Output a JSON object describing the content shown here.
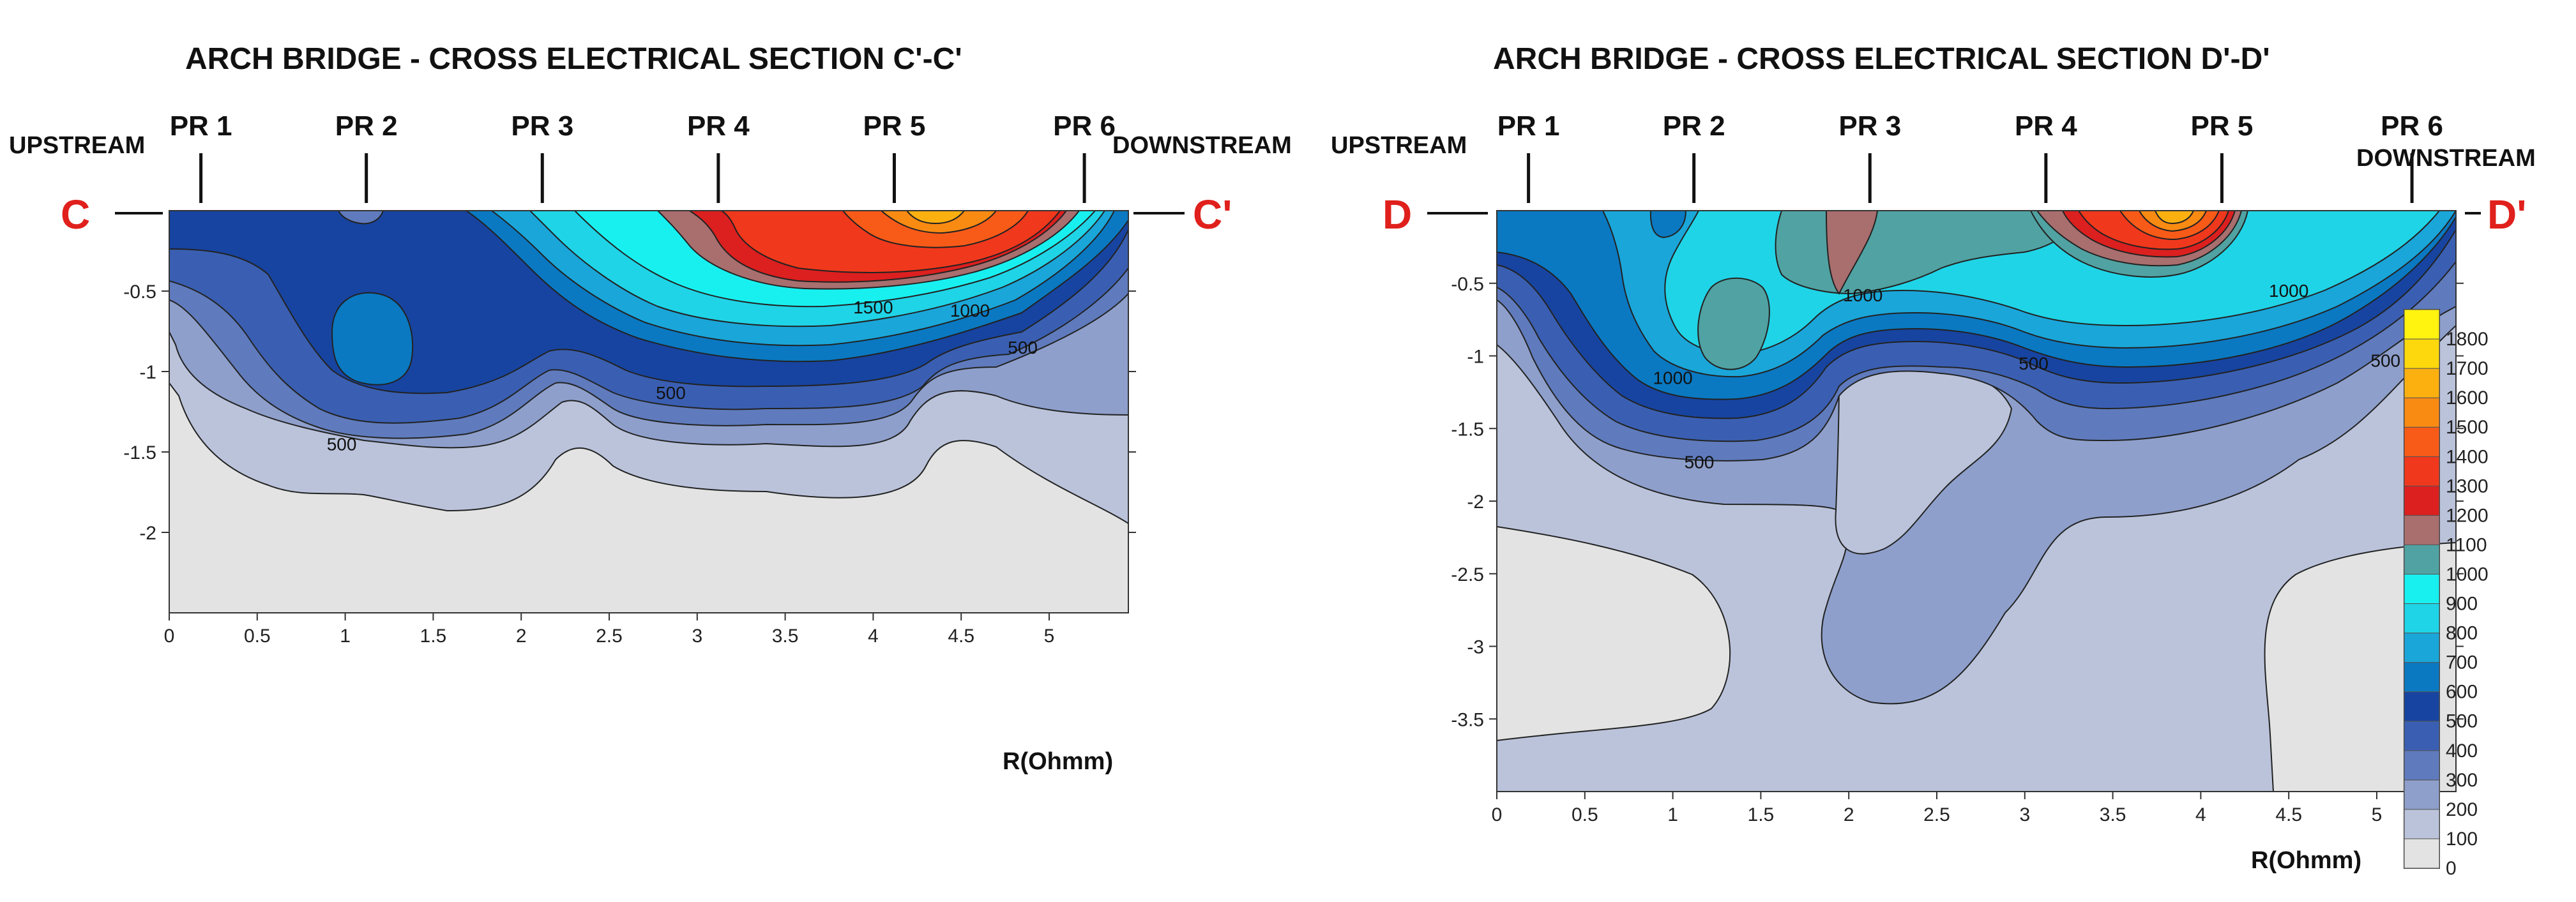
{
  "colors": {
    "scale": [
      "#e3e3e3",
      "#bac3da",
      "#8e9fcb",
      "#5f7bbd",
      "#3a5fb2",
      "#1744a0",
      "#0a79c2",
      "#1aa6d9",
      "#1fd4e6",
      "#18f0f0",
      "#51a2a2",
      "#a96e6e",
      "#dc1f1f",
      "#f0381c",
      "#f85a18",
      "#f98a12",
      "#fcb010",
      "#fdd80c",
      "#fff310"
    ],
    "section_label": "#e0201c"
  },
  "chart_data": [
    {
      "type": "heatmap",
      "title": "ARCH BRIDGE - CROSS ELECTRICAL SECTION C'-C'",
      "xlabel": "",
      "ylabel": "",
      "unit_label": "R(Ohmm)",
      "xlim": [
        0,
        5.45
      ],
      "ylim": [
        -2.5,
        0
      ],
      "x_ticks": [
        "0",
        "0.5",
        "1",
        "1.5",
        "2",
        "2.5",
        "3",
        "3.5",
        "4",
        "4.5",
        "5"
      ],
      "y_ticks": [
        "-0.5",
        "-1",
        "-1.5",
        "-2"
      ],
      "left_side_label": "UPSTREAM",
      "right_side_label": "DOWNSTREAM",
      "section_start": "C",
      "section_end": "C'",
      "profiles": [
        {
          "label": "PR 1",
          "x": 0.18
        },
        {
          "label": "PR 2",
          "x": 1.12
        },
        {
          "label": "PR 3",
          "x": 2.12
        },
        {
          "label": "PR 4",
          "x": 3.12
        },
        {
          "label": "PR 5",
          "x": 4.12
        },
        {
          "label": "PR 6",
          "x": 5.2
        }
      ],
      "contour_labels": [
        {
          "text": "500",
          "x": 0.98,
          "y": -1.45
        },
        {
          "text": "500",
          "x": 2.85,
          "y": -1.13
        },
        {
          "text": "500",
          "x": 4.85,
          "y": -0.85
        },
        {
          "text": "1000",
          "x": 4.55,
          "y": -0.62
        },
        {
          "text": "1500",
          "x": 4.0,
          "y": -0.6
        }
      ]
    },
    {
      "type": "heatmap",
      "title": "ARCH BRIDGE - CROSS ELECTRICAL SECTION D'-D'",
      "xlabel": "",
      "ylabel": "",
      "unit_label": "R(Ohmm)",
      "xlim": [
        0,
        5.45
      ],
      "ylim": [
        -4,
        0
      ],
      "x_ticks": [
        "0",
        "0.5",
        "1",
        "1.5",
        "2",
        "2.5",
        "3",
        "3.5",
        "4",
        "4.5",
        "5"
      ],
      "y_ticks": [
        "-0.5",
        "-1",
        "-1.5",
        "-2",
        "-2.5",
        "-3",
        "-3.5"
      ],
      "left_side_label": "UPSTREAM",
      "right_side_label": "DOWNSTREAM",
      "section_start": "D",
      "section_end": "D'",
      "profiles": [
        {
          "label": "PR 1",
          "x": 0.18
        },
        {
          "label": "PR 2",
          "x": 1.12
        },
        {
          "label": "PR 3",
          "x": 2.12
        },
        {
          "label": "PR 4",
          "x": 3.12
        },
        {
          "label": "PR 5",
          "x": 4.12
        },
        {
          "label": "PR 6",
          "x": 5.2
        }
      ],
      "contour_labels": [
        {
          "text": "1000",
          "x": 1.0,
          "y": -1.15
        },
        {
          "text": "1000",
          "x": 2.08,
          "y": -0.58
        },
        {
          "text": "1000",
          "x": 4.5,
          "y": -0.55
        },
        {
          "text": "500",
          "x": 3.05,
          "y": -1.05
        },
        {
          "text": "500",
          "x": 1.15,
          "y": -1.73
        },
        {
          "text": "500",
          "x": 5.05,
          "y": -1.03
        }
      ],
      "colorbar": {
        "labels": [
          "0",
          "100",
          "200",
          "300",
          "400",
          "500",
          "600",
          "700",
          "800",
          "900",
          "1000",
          "1100",
          "1200",
          "1300",
          "1400",
          "1500",
          "1600",
          "1700",
          "1800"
        ]
      }
    }
  ]
}
